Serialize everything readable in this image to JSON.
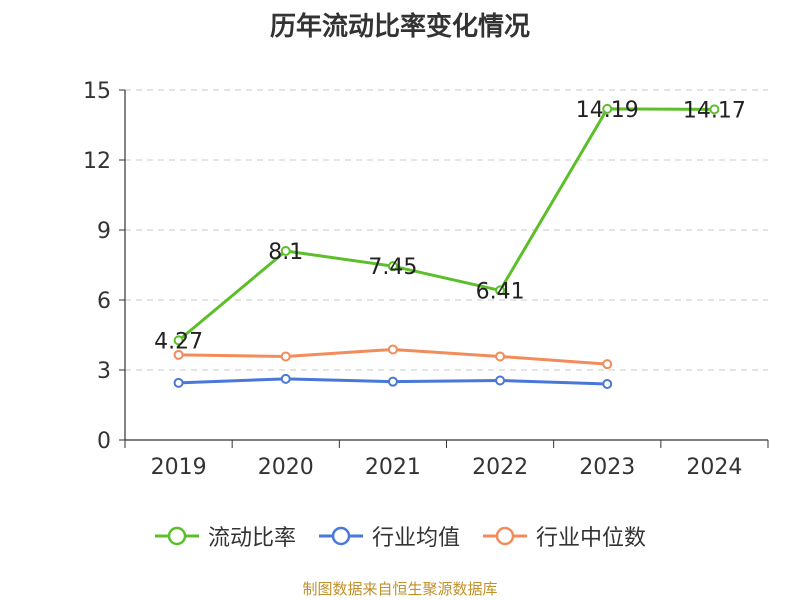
{
  "chart_data": {
    "type": "line",
    "title": "历年流动比率变化情况",
    "categories": [
      "2019",
      "2020",
      "2021",
      "2022",
      "2023",
      "2024"
    ],
    "ylim": [
      0,
      15
    ],
    "yticks": [
      0,
      3,
      6,
      9,
      12,
      15
    ],
    "grid": true,
    "legend_position": "bottom",
    "series": [
      {
        "name": "流动比率",
        "color": "#5cbf2a",
        "values": [
          4.27,
          8.1,
          7.45,
          6.41,
          14.19,
          14.17
        ],
        "labels": [
          "4.27",
          "8.1",
          "7.45",
          "6.41",
          "14.19",
          "14.17"
        ]
      },
      {
        "name": "行业均值",
        "color": "#4a78d8",
        "values": [
          2.45,
          2.62,
          2.5,
          2.55,
          2.4,
          null
        ]
      },
      {
        "name": "行业中位数",
        "color": "#f28c5a",
        "values": [
          3.65,
          3.58,
          3.88,
          3.58,
          3.25,
          null
        ]
      }
    ],
    "source": "制图数据来自恒生聚源数据库"
  }
}
